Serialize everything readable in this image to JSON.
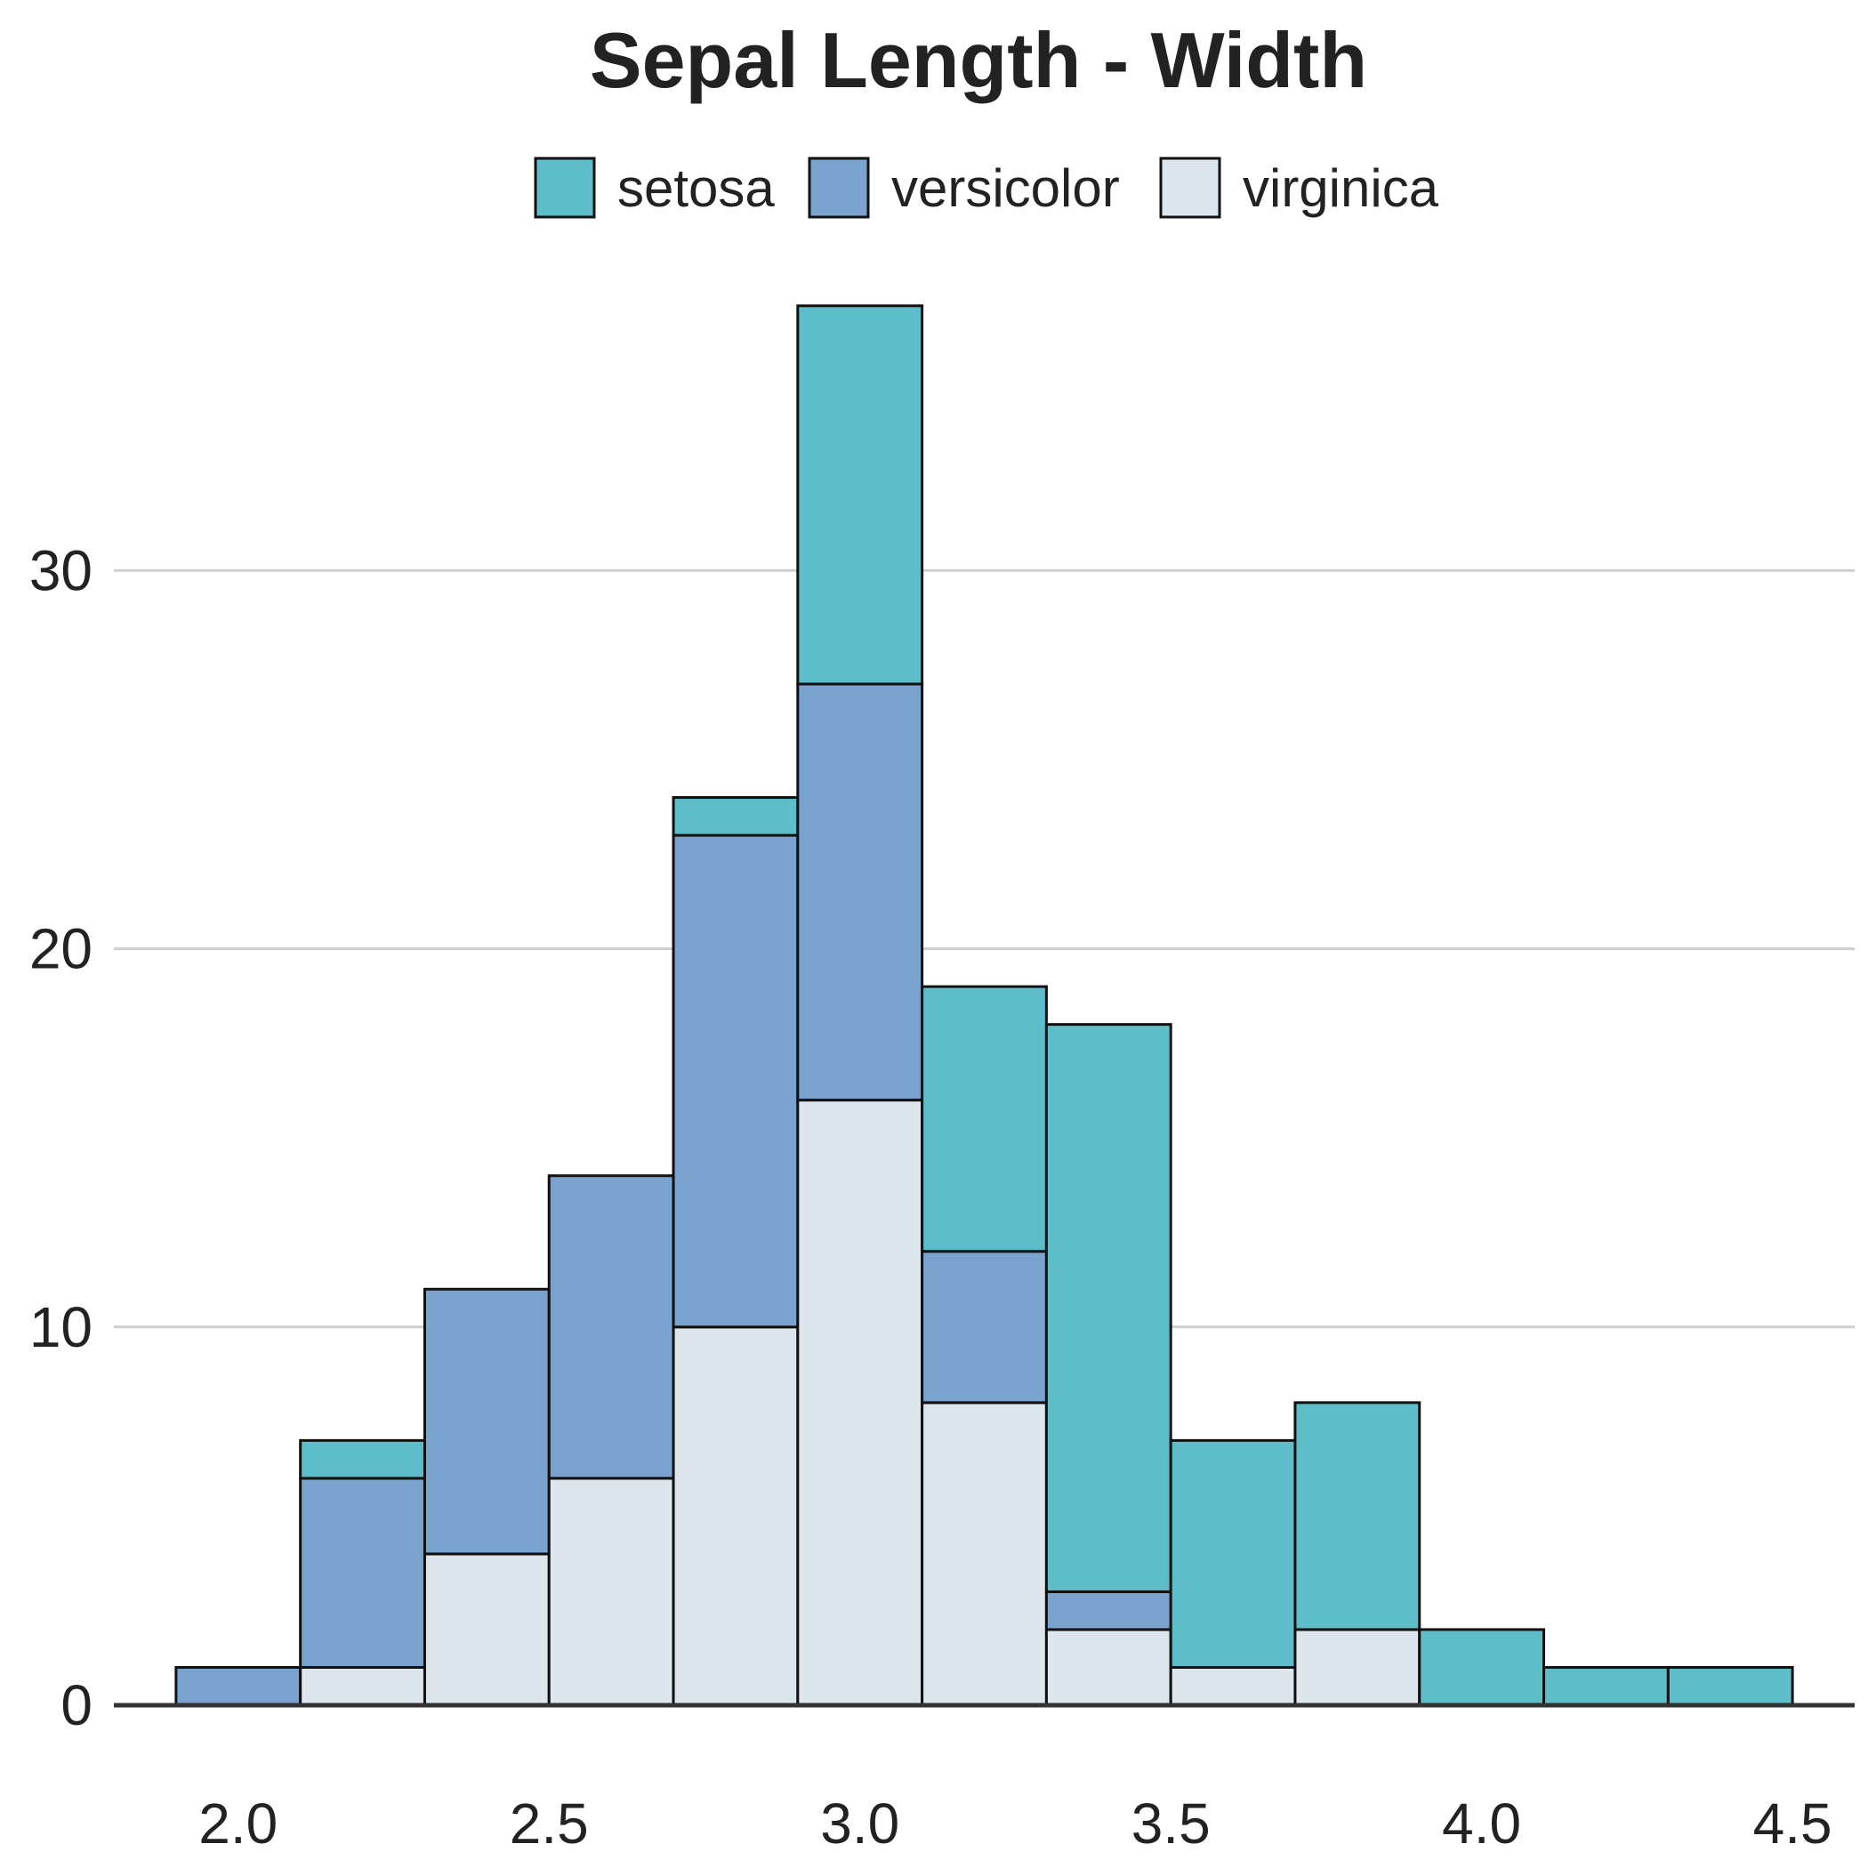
{
  "chart_data": {
    "type": "bar",
    "stacked": true,
    "title": "Sepal Length - Width",
    "xlabel": "",
    "ylabel": "",
    "xlim": [
      1.8,
      4.6
    ],
    "ylim": [
      0,
      38.5
    ],
    "x_ticks": [
      "2.0",
      "2.5",
      "3.0",
      "3.5",
      "4.0",
      "4.5"
    ],
    "x_tick_values": [
      2.0,
      2.5,
      3.0,
      3.5,
      4.0,
      4.5
    ],
    "y_ticks": [
      "0",
      "10",
      "20",
      "30"
    ],
    "y_tick_values": [
      0,
      10,
      20,
      30
    ],
    "grid": "horizontal",
    "legend_position": "top",
    "bins": [
      [
        1.9,
        2.1
      ],
      [
        2.1,
        2.3
      ],
      [
        2.3,
        2.5
      ],
      [
        2.5,
        2.7
      ],
      [
        2.7,
        2.9
      ],
      [
        2.9,
        3.1
      ],
      [
        3.1,
        3.3
      ],
      [
        3.3,
        3.5
      ],
      [
        3.5,
        3.7
      ],
      [
        3.7,
        3.9
      ],
      [
        3.9,
        4.1
      ],
      [
        4.1,
        4.3
      ],
      [
        4.3,
        4.5
      ]
    ],
    "series": [
      {
        "name": "virginica",
        "color": "#dde6ed",
        "values": [
          0,
          1,
          4,
          6,
          10,
          16,
          8,
          2,
          1,
          2,
          0,
          0,
          0
        ]
      },
      {
        "name": "versicolor",
        "color": "#7ba3cf",
        "values": [
          1,
          5,
          7,
          8,
          13,
          11,
          4,
          1,
          0,
          0,
          0,
          0,
          0
        ]
      },
      {
        "name": "setosa",
        "color": "#5dbdc9",
        "values": [
          0,
          1,
          0,
          0,
          1,
          10,
          7,
          15,
          6,
          6,
          2,
          1,
          1
        ]
      }
    ],
    "legend_order": [
      "setosa",
      "versicolor",
      "virginica"
    ]
  }
}
